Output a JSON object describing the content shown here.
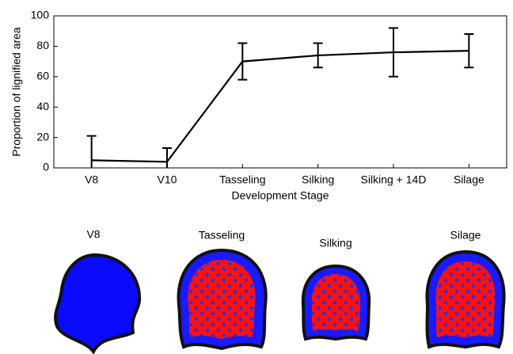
{
  "chart_data": {
    "type": "line",
    "categories": [
      "V8",
      "V10",
      "Tasseling",
      "Silking",
      "Silking + 14D",
      "Silage"
    ],
    "values": [
      5,
      4,
      70,
      74,
      76,
      77
    ],
    "errors": [
      16,
      9,
      12,
      8,
      16,
      11
    ],
    "color": "#000000",
    "ylabel": "Proportion of lignified area",
    "xlabel": "Development Stage",
    "ylim": [
      0,
      100
    ],
    "yticks": [
      0,
      20,
      40,
      60,
      80,
      100
    ]
  },
  "sections": [
    {
      "label": "V8"
    },
    {
      "label": "Tasseling"
    },
    {
      "label": "Silking"
    },
    {
      "label": "Silage"
    }
  ]
}
